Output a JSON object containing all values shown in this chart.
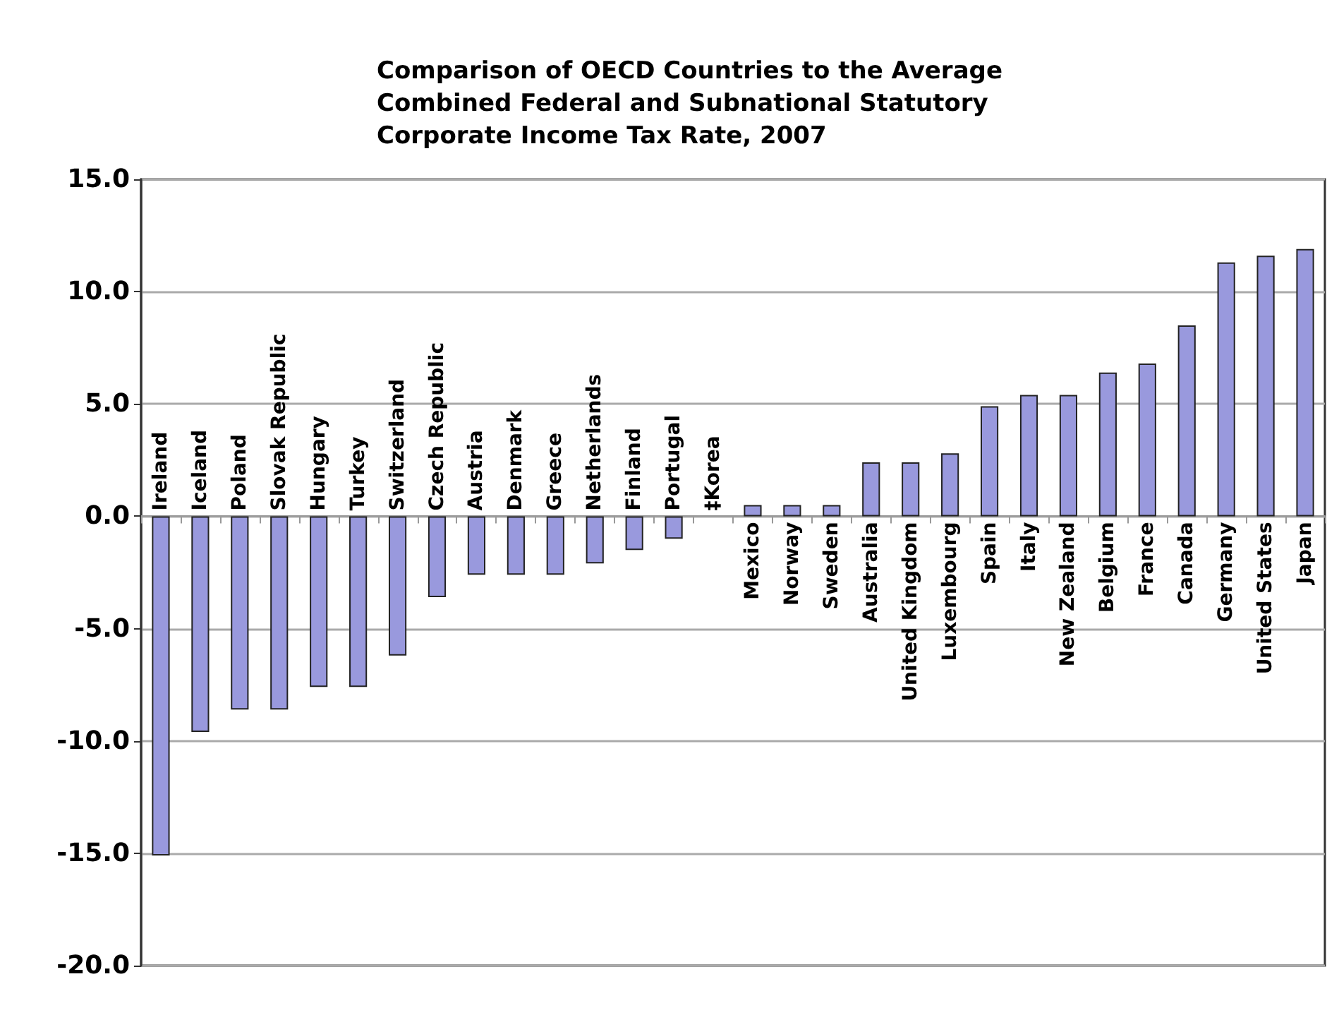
{
  "chart_data": {
    "type": "bar",
    "title": "Comparison of OECD Countries to the Average\nCombined Federal and Subnational Statutory\nCorporate Income Tax Rate, 2007",
    "categories": [
      "Ireland",
      "Iceland",
      "Poland",
      "Slovak Republic",
      "Hungary",
      "Turkey",
      "Switzerland",
      "Czech Republic",
      "Austria",
      "Denmark",
      "Greece",
      "Netherlands",
      "Finland",
      "Portugal",
      "‡Korea",
      "Mexico",
      "Norway",
      "Sweden",
      "Australia",
      "United Kingdom",
      "Luxembourg",
      "Spain",
      "Italy",
      "New Zealand",
      "Belgium",
      "France",
      "Canada",
      "Germany",
      "United States",
      "Japan"
    ],
    "values": [
      -15.1,
      -9.6,
      -8.6,
      -8.6,
      -7.6,
      -7.6,
      -6.2,
      -3.6,
      -2.6,
      -2.6,
      -2.6,
      -2.1,
      -1.5,
      -1.0,
      0,
      0.5,
      0.5,
      0.5,
      2.4,
      2.4,
      2.8,
      4.9,
      5.4,
      5.4,
      6.4,
      6.8,
      8.5,
      11.3,
      11.6,
      11.9
    ],
    "color": "#9999dd",
    "ylim": [
      -20,
      15
    ],
    "yticks": [
      {
        "value": -20,
        "label": "-20.0"
      },
      {
        "value": -15,
        "label": "-15.0"
      },
      {
        "value": -10,
        "label": "-10.0"
      },
      {
        "value": -5,
        "label": "-5.0"
      },
      {
        "value": 0,
        "label": "0.0"
      },
      {
        "value": 5,
        "label": "5.0"
      },
      {
        "value": 10,
        "label": "10.0"
      },
      {
        "value": 15,
        "label": "15.0"
      }
    ],
    "grid": true
  }
}
